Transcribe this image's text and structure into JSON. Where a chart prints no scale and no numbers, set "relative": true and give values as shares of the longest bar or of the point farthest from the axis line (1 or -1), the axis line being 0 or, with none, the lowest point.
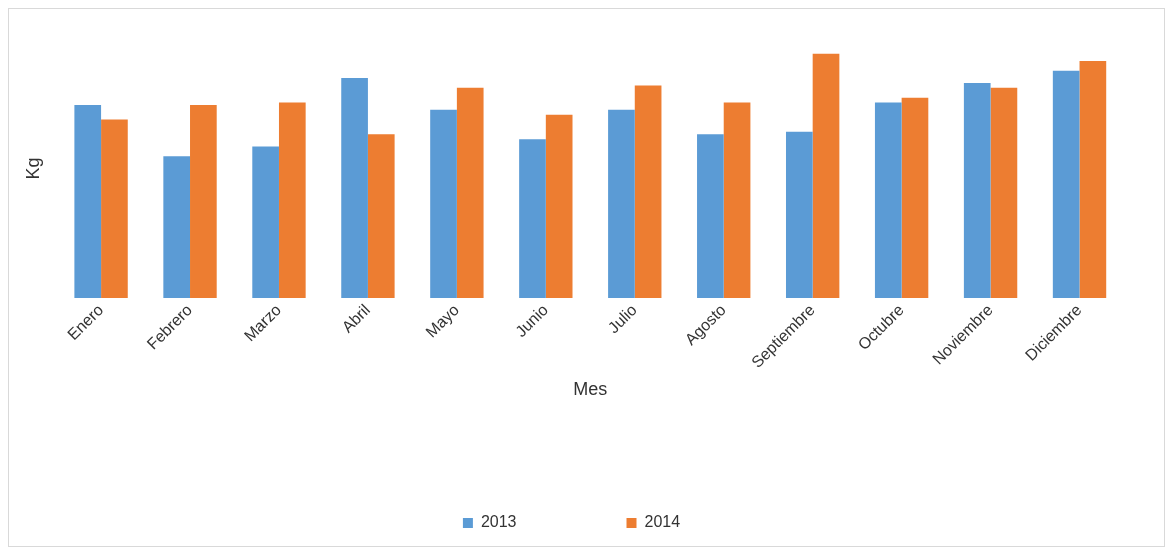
{
  "chart_data": {
    "type": "bar",
    "xlabel": "Mes",
    "ylabel": "Kg",
    "relative": true,
    "legend": "bottom",
    "grid": false,
    "categories": [
      "Enero",
      "Febrero",
      "Marzo",
      "Abril",
      "Mayo",
      "Junio",
      "Julio",
      "Agosto",
      "Septiembre",
      "Octubre",
      "Noviembre",
      "Diciembre"
    ],
    "series": [
      {
        "name": "2013",
        "color": "#5b9bd5",
        "values": [
          0.79,
          0.58,
          0.62,
          0.9,
          0.77,
          0.65,
          0.77,
          0.67,
          0.68,
          0.8,
          0.88,
          0.93
        ]
      },
      {
        "name": "2014",
        "color": "#ed7d31",
        "values": [
          0.73,
          0.79,
          0.8,
          0.67,
          0.86,
          0.75,
          0.87,
          0.8,
          1,
          0.82,
          0.86,
          0.97
        ]
      }
    ]
  }
}
